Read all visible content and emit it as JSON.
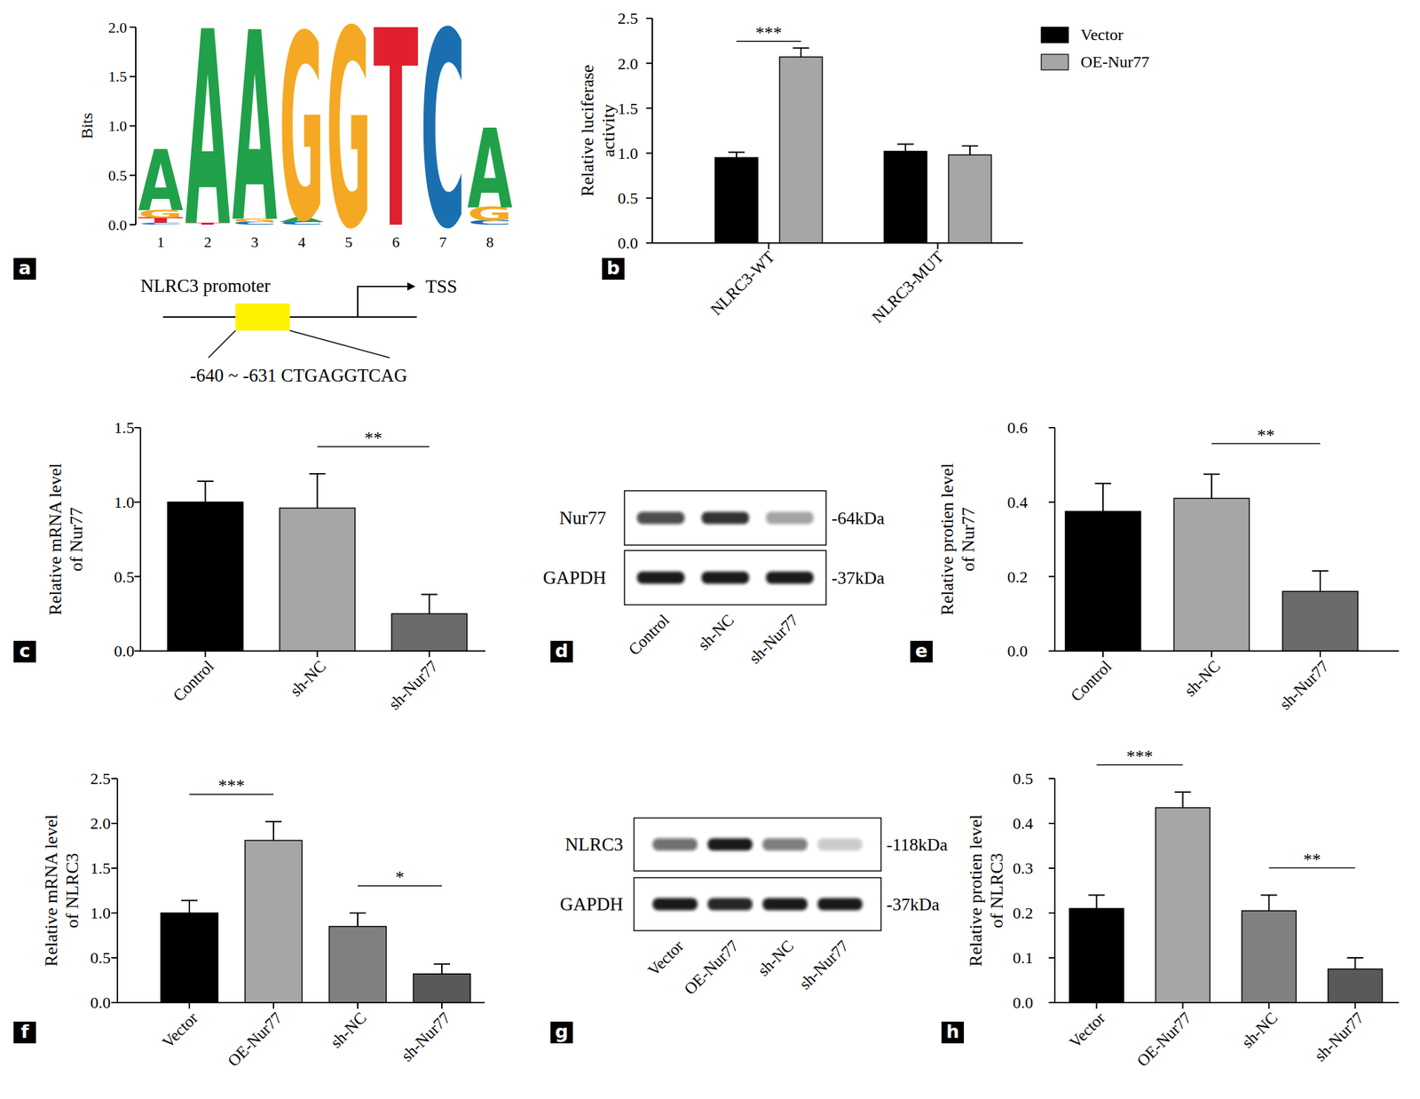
{
  "chart_data": [
    {
      "type": "sequence_logo",
      "panel_label": "a",
      "y_label": [
        "Bits"
      ],
      "categories": [
        "1",
        "2",
        "3",
        "4",
        "5",
        "6",
        "7",
        "8"
      ],
      "ylim": [
        0,
        2
      ],
      "yticks": [
        {
          "value": 0,
          "label": "0.0"
        },
        0.5,
        {
          "value": 1,
          "label": "1.0"
        },
        1.5,
        {
          "value": 2,
          "label": "2.0"
        }
      ],
      "letters": [
        [
          {
            "base": "C",
            "bits": 0.02,
            "color": "#1a6fb0"
          },
          {
            "base": "T",
            "bits": 0.05,
            "color": "#e0202e"
          },
          {
            "base": "G",
            "bits": 0.08,
            "color": "#f5a823"
          },
          {
            "base": "A",
            "bits": 0.62,
            "color": "#21a04a"
          }
        ],
        [
          {
            "base": "T",
            "bits": 0.02,
            "color": "#e0202e"
          },
          {
            "base": "A",
            "bits": 1.97,
            "color": "#21a04a"
          }
        ],
        [
          {
            "base": "C",
            "bits": 0.03,
            "color": "#1a6fb0"
          },
          {
            "base": "G",
            "bits": 0.03,
            "color": "#f5a823"
          },
          {
            "base": "A",
            "bits": 1.92,
            "color": "#21a04a"
          }
        ],
        [
          {
            "base": "C",
            "bits": 0.03,
            "color": "#1a6fb0"
          },
          {
            "base": "A",
            "bits": 0.04,
            "color": "#21a04a"
          },
          {
            "base": "G",
            "bits": 1.88,
            "color": "#f5a823"
          }
        ],
        [
          {
            "base": "G",
            "bits": 2.0,
            "color": "#f5a823"
          }
        ],
        [
          {
            "base": "T",
            "bits": 2.0,
            "color": "#e0202e"
          }
        ],
        [
          {
            "base": "C",
            "bits": 1.98,
            "color": "#1a6fb0"
          }
        ],
        [
          {
            "base": "C",
            "bits": 0.04,
            "color": "#1a6fb0"
          },
          {
            "base": "G",
            "bits": 0.14,
            "color": "#f5a823"
          },
          {
            "base": "A",
            "bits": 0.8,
            "color": "#21a04a"
          }
        ]
      ],
      "promoter": {
        "label": "NLRC3 promoter",
        "tss": "TSS",
        "site": "-640 ~ -631 CTGAGGTCAG"
      }
    },
    {
      "type": "bar",
      "panel_label": "b",
      "y_label": [
        "Relative luciferase",
        "activity"
      ],
      "categories": [
        "NLRC3-WT",
        "NLRC3-MUT"
      ],
      "series": [
        {
          "name": "Vector",
          "color": "#000000",
          "values": [
            0.95,
            1.02
          ],
          "errors": [
            0.06,
            0.08
          ]
        },
        {
          "name": "OE-Nur77",
          "color": "#a6a6a6",
          "values": [
            2.07,
            0.98
          ],
          "errors": [
            0.1,
            0.1
          ]
        }
      ],
      "ylim": [
        0,
        2.5
      ],
      "yticks": [
        {
          "value": 0,
          "label": "0.0"
        },
        0.5,
        {
          "value": 1,
          "label": "1.0"
        },
        1.5,
        {
          "value": 2,
          "label": "2.0"
        },
        2.5
      ],
      "legend": "top-right",
      "annotations": [
        {
          "text": "***",
          "category": 0
        }
      ]
    },
    {
      "type": "bar",
      "panel_label": "c",
      "y_label": [
        "Relative mRNA level",
        "of Nur77"
      ],
      "categories": [
        "Control",
        "sh-NC",
        "sh-Nur77"
      ],
      "values": [
        1.0,
        0.96,
        0.25
      ],
      "errors": [
        0.14,
        0.23,
        0.13
      ],
      "colors": [
        "#000000",
        "#a6a6a6",
        "#6b6b6b"
      ],
      "ylim": [
        0,
        1.5
      ],
      "yticks": [
        {
          "value": 0,
          "label": "0.0"
        },
        0.5,
        {
          "value": 1,
          "label": "1.0"
        },
        1.5
      ],
      "annotations": [
        {
          "text": "**",
          "from": 1,
          "to": 2
        }
      ]
    },
    {
      "type": "blot",
      "panel_label": "d",
      "lanes": [
        "Control",
        "sh-NC",
        "sh-Nur77"
      ],
      "rows": [
        {
          "name": "Nur77",
          "size": "-64kDa",
          "intensity": [
            0.75,
            0.85,
            0.4
          ]
        },
        {
          "name": "GAPDH",
          "size": "-37kDa",
          "intensity": [
            0.95,
            0.95,
            0.95
          ]
        }
      ]
    },
    {
      "type": "bar",
      "panel_label": "e",
      "y_label": [
        "Relative protien level",
        "of Nur77"
      ],
      "categories": [
        "Control",
        "sh-NC",
        "sh-Nur77"
      ],
      "values": [
        0.375,
        0.41,
        0.16
      ],
      "errors": [
        0.075,
        0.065,
        0.055
      ],
      "colors": [
        "#000000",
        "#a6a6a6",
        "#6b6b6b"
      ],
      "ylim": [
        0,
        0.6
      ],
      "yticks": [
        {
          "value": 0,
          "label": "0.0"
        },
        0.2,
        0.4,
        0.6
      ],
      "annotations": [
        {
          "text": "**",
          "from": 1,
          "to": 2
        }
      ]
    },
    {
      "type": "bar",
      "panel_label": "f",
      "y_label": [
        "Relative mRNA level",
        "of NLRC3"
      ],
      "categories": [
        "Vector",
        "OE-Nur77",
        "sh-NC",
        "sh-Nur77"
      ],
      "values": [
        1.0,
        1.81,
        0.85,
        0.32
      ],
      "errors": [
        0.14,
        0.21,
        0.15,
        0.11
      ],
      "colors": [
        "#000000",
        "#a6a6a6",
        "#808080",
        "#595959"
      ],
      "ylim": [
        0,
        2.5
      ],
      "yticks": [
        {
          "value": 0,
          "label": "0.0"
        },
        0.5,
        {
          "value": 1,
          "label": "1.0"
        },
        1.5,
        {
          "value": 2,
          "label": "2.0"
        },
        2.5
      ],
      "annotations": [
        {
          "text": "***",
          "from": 0,
          "to": 1
        },
        {
          "text": "*",
          "from": 2,
          "to": 3
        }
      ]
    },
    {
      "type": "blot",
      "panel_label": "g",
      "lanes": [
        "Vector",
        "OE-Nur77",
        "sh-NC",
        "sh-Nur77"
      ],
      "rows": [
        {
          "name": "NLRC3",
          "size": "-118kDa",
          "intensity": [
            0.6,
            0.95,
            0.55,
            0.2
          ]
        },
        {
          "name": "GAPDH",
          "size": "-37kDa",
          "intensity": [
            0.95,
            0.9,
            0.95,
            0.95
          ]
        }
      ]
    },
    {
      "type": "bar",
      "panel_label": "h",
      "y_label": [
        "Relative protien level",
        "of NLRC3"
      ],
      "categories": [
        "Vector",
        "OE-Nur77",
        "sh-NC",
        "sh-Nur77"
      ],
      "values": [
        0.21,
        0.435,
        0.205,
        0.075
      ],
      "errors": [
        0.03,
        0.035,
        0.035,
        0.025
      ],
      "colors": [
        "#000000",
        "#a6a6a6",
        "#808080",
        "#595959"
      ],
      "ylim": [
        0,
        0.5
      ],
      "yticks": [
        {
          "value": 0,
          "label": "0.0"
        },
        0.1,
        0.2,
        0.3,
        0.4,
        0.5
      ],
      "annotations": [
        {
          "text": "***",
          "from": 0,
          "to": 1
        },
        {
          "text": "**",
          "from": 2,
          "to": 3
        }
      ]
    }
  ]
}
